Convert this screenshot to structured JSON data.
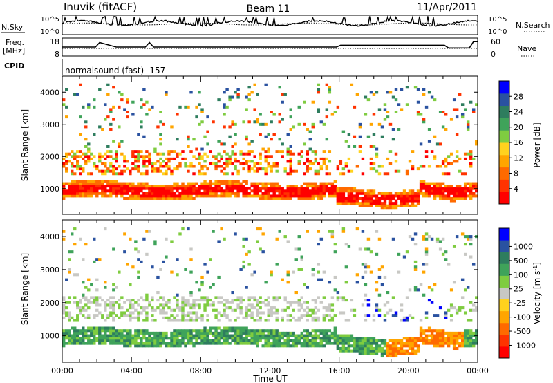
{
  "header": {
    "station": "Inuvik (fitACF)",
    "beam": "Beam 11",
    "date": "11/Apr/2011"
  },
  "strips": {
    "nsky_label": "N.Sky",
    "nsky_ticks": [
      "10^5",
      "10^0"
    ],
    "nsearch_label": "N.Search",
    "nsearch_ticks": [
      "10^5",
      "10^0"
    ],
    "freq_label_1": "Freq.",
    "freq_label_2": "[MHz]",
    "freq_ticks": [
      "18",
      "8"
    ],
    "nave_label": "Nave",
    "nave_ticks": [
      "60",
      "0"
    ],
    "cpid_label": "CPID",
    "cpid_text": "normalsound (fast) -157"
  },
  "colors": {
    "power_scale": [
      "#0000ff",
      "#2a52a0",
      "#2e7d5e",
      "#3fa35a",
      "#7fcc40",
      "#ffd21e",
      "#ffa500",
      "#ff6a00",
      "#ff3300",
      "#ff0000"
    ],
    "velocity_scale": [
      "#0000ff",
      "#2a52a0",
      "#2e7d5e",
      "#3fa35a",
      "#7fcc40",
      "#c8c8c4",
      "#ffd21e",
      "#ffa500",
      "#ff6a00",
      "#ff3300",
      "#ff0000"
    ]
  },
  "chart_data": [
    {
      "type": "heatmap",
      "name": "power",
      "ylabel": "Slant Range [km]",
      "y_ticks": [
        "1000",
        "2000",
        "3000",
        "4000"
      ],
      "ylim": [
        200,
        4500
      ],
      "colorbar_label": "Power [dB]",
      "colorbar_ticks": [
        "28",
        "24",
        "20",
        "16",
        "12",
        "8",
        "4"
      ],
      "colorbar_range": [
        0,
        32
      ]
    },
    {
      "type": "heatmap",
      "name": "velocity",
      "ylabel": "Slant Range [km]",
      "y_ticks": [
        "1000",
        "2000",
        "3000",
        "4000"
      ],
      "ylim": [
        200,
        4500
      ],
      "xlabel": "Time UT",
      "x_ticks": [
        "00:00",
        "04:00",
        "08:00",
        "12:00",
        "16:00",
        "20:00",
        "00:00"
      ],
      "colorbar_label": "Velocity [m s-1]",
      "colorbar_ticks": [
        "1000",
        "500",
        "100",
        "25",
        "-25",
        "-100",
        "-500",
        "-1000"
      ]
    }
  ]
}
